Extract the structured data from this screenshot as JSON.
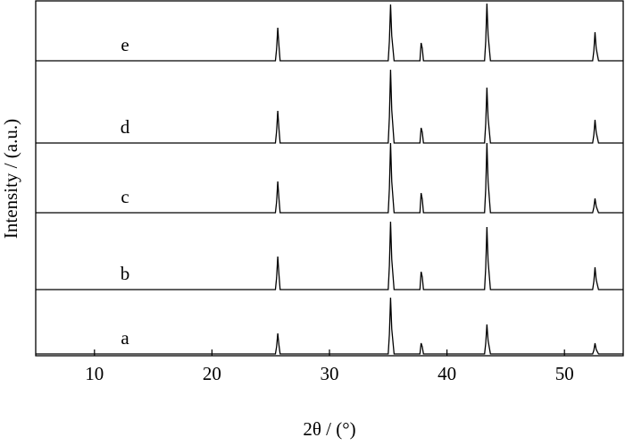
{
  "chart_data": {
    "type": "line",
    "xlabel": "2θ / (°)",
    "ylabel": "Intensity / (a.u.)",
    "xlim": [
      5,
      55
    ],
    "xticks": [
      10,
      20,
      30,
      40,
      50
    ],
    "ylim": [
      0,
      100
    ],
    "x": [
      5,
      25.4,
      25.5,
      25.6,
      25.7,
      25.8,
      35.0,
      35.1,
      35.2,
      35.3,
      35.5,
      37.7,
      37.8,
      37.9,
      38.0,
      43.2,
      43.3,
      43.4,
      43.5,
      43.7,
      52.4,
      52.5,
      52.6,
      52.7,
      52.9,
      55
    ],
    "series": [
      {
        "name": "a",
        "color": "#000000",
        "values": [
          0,
          0,
          8,
          23,
          10,
          0,
          0,
          22,
          63,
          28,
          0,
          0,
          12,
          8,
          0,
          0,
          12,
          33,
          15,
          0,
          0,
          4,
          12,
          5,
          0,
          0
        ]
      },
      {
        "name": "b",
        "color": "#000000",
        "values": [
          0,
          0,
          13,
          37,
          17,
          0,
          0,
          27,
          76,
          34,
          0,
          0,
          20,
          14,
          0,
          0,
          25,
          70,
          32,
          0,
          0,
          9,
          25,
          11,
          0,
          0
        ]
      },
      {
        "name": "c",
        "color": "#000000",
        "values": [
          0,
          0,
          12,
          35,
          16,
          0,
          0,
          27,
          78,
          35,
          0,
          0,
          22,
          15,
          0,
          0,
          27,
          78,
          35,
          0,
          0,
          6,
          16,
          7,
          0,
          0
        ]
      },
      {
        "name": "d",
        "color": "#000000",
        "values": [
          0,
          0,
          13,
          36,
          16,
          0,
          0,
          29,
          82,
          37,
          0,
          0,
          17,
          12,
          0,
          0,
          22,
          62,
          28,
          0,
          0,
          9,
          26,
          12,
          0,
          0
        ]
      },
      {
        "name": "e",
        "color": "#000000",
        "values": [
          0,
          0,
          13,
          37,
          17,
          0,
          0,
          22,
          63,
          28,
          0,
          0,
          20,
          14,
          0,
          0,
          22,
          64,
          29,
          0,
          0,
          11,
          32,
          14,
          0,
          0
        ]
      }
    ]
  }
}
